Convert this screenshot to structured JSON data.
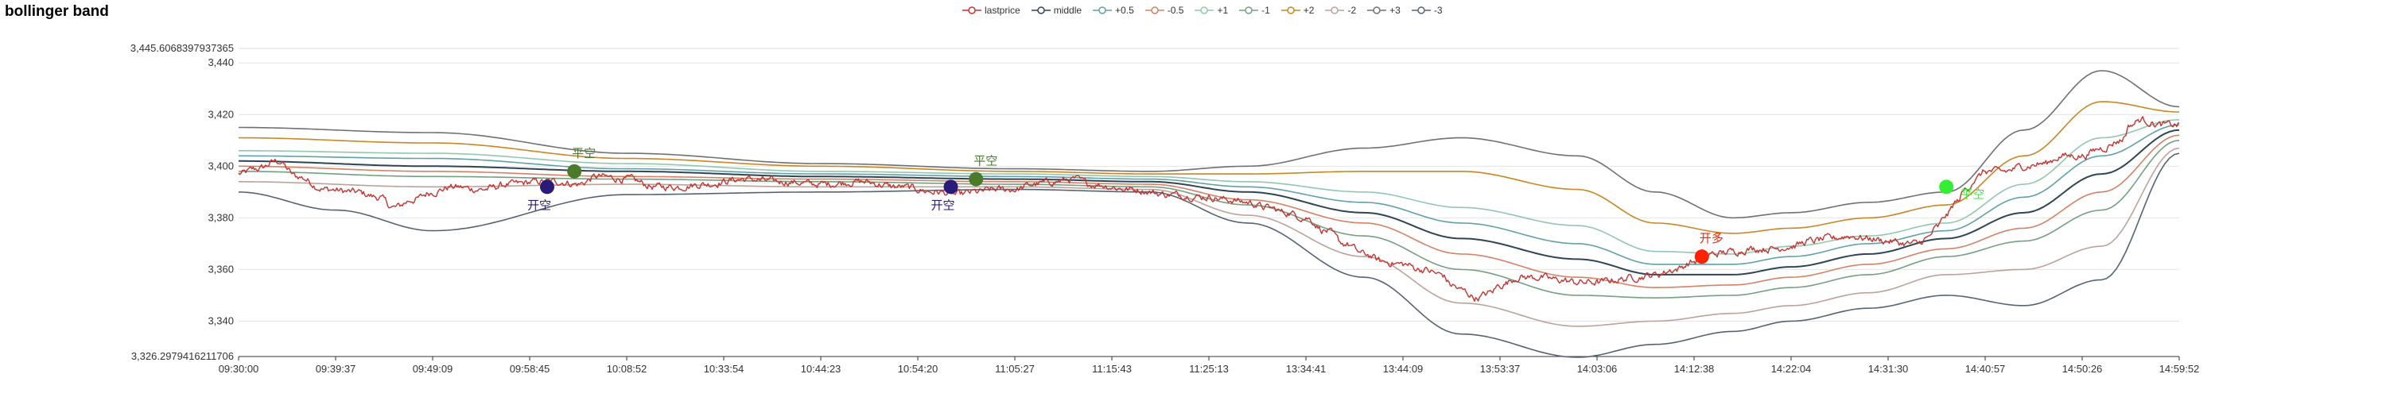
{
  "chart_data": {
    "type": "line",
    "title": "bollinger band",
    "xlabel": "",
    "ylabel": "",
    "ylim": [
      3326.2979416211706,
      3445.6068397937365
    ],
    "y_tick_labels": [
      "3,326.2979416211706",
      "3,340",
      "3,360",
      "3,380",
      "3,400",
      "3,420",
      "3,440",
      "3,445.6068397937365"
    ],
    "y_tick_values": [
      3326.2979416211706,
      3340,
      3360,
      3380,
      3400,
      3420,
      3440,
      3445.6068397937365
    ],
    "x_tick_labels": [
      "09:30:00",
      "09:39:37",
      "09:49:09",
      "09:58:45",
      "10:08:52",
      "10:33:54",
      "10:44:23",
      "10:54:20",
      "11:05:27",
      "11:15:43",
      "11:25:13",
      "13:34:41",
      "13:44:09",
      "13:53:37",
      "14:03:06",
      "14:12:38",
      "14:22:04",
      "14:31:30",
      "14:40:57",
      "14:50:26",
      "14:59:52"
    ],
    "legend_position": "top-center",
    "grid": true,
    "series": [
      {
        "name": "lastprice",
        "color": "#c23531"
      },
      {
        "name": "middle",
        "color": "#2f4554"
      },
      {
        "name": "+0.5",
        "color": "#61a0a8"
      },
      {
        "name": "-0.5",
        "color": "#d48265"
      },
      {
        "name": "+1",
        "color": "#91c7ae"
      },
      {
        "name": "-1",
        "color": "#749f83"
      },
      {
        "name": "+2",
        "color": "#ca8622"
      },
      {
        "name": "-2",
        "color": "#bda29a"
      },
      {
        "name": "+3",
        "color": "#6e7074"
      },
      {
        "name": "-3",
        "color": "#546570"
      }
    ],
    "price_keypoints": [
      [
        0,
        3397
      ],
      [
        0.01,
        3399
      ],
      [
        0.02,
        3402
      ],
      [
        0.03,
        3396
      ],
      [
        0.045,
        3391
      ],
      [
        0.06,
        3390
      ],
      [
        0.072,
        3388
      ],
      [
        0.08,
        3384
      ],
      [
        0.09,
        3387
      ],
      [
        0.1,
        3390
      ],
      [
        0.11,
        3392
      ],
      [
        0.125,
        3391
      ],
      [
        0.14,
        3393
      ],
      [
        0.155,
        3394
      ],
      [
        0.165,
        3394
      ],
      [
        0.175,
        3393
      ],
      [
        0.185,
        3396
      ],
      [
        0.2,
        3395
      ],
      [
        0.215,
        3392
      ],
      [
        0.225,
        3392
      ],
      [
        0.24,
        3393
      ],
      [
        0.26,
        3395
      ],
      [
        0.28,
        3394
      ],
      [
        0.3,
        3393
      ],
      [
        0.32,
        3394
      ],
      [
        0.34,
        3392
      ],
      [
        0.36,
        3390
      ],
      [
        0.37,
        3389
      ],
      [
        0.38,
        3390
      ],
      [
        0.39,
        3391
      ],
      [
        0.4,
        3391
      ],
      [
        0.41,
        3393
      ],
      [
        0.42,
        3394
      ],
      [
        0.43,
        3395
      ],
      [
        0.44,
        3393
      ],
      [
        0.46,
        3391
      ],
      [
        0.48,
        3389
      ],
      [
        0.5,
        3388
      ],
      [
        0.51,
        3387
      ],
      [
        0.52,
        3386
      ],
      [
        0.53,
        3384
      ],
      [
        0.54,
        3382
      ],
      [
        0.55,
        3380
      ],
      [
        0.56,
        3375
      ],
      [
        0.57,
        3370
      ],
      [
        0.58,
        3366
      ],
      [
        0.59,
        3363
      ],
      [
        0.6,
        3362
      ],
      [
        0.61,
        3360
      ],
      [
        0.62,
        3358
      ],
      [
        0.625,
        3354
      ],
      [
        0.63,
        3352
      ],
      [
        0.638,
        3349
      ],
      [
        0.645,
        3351
      ],
      [
        0.65,
        3354
      ],
      [
        0.66,
        3357
      ],
      [
        0.67,
        3357
      ],
      [
        0.68,
        3356
      ],
      [
        0.69,
        3355
      ],
      [
        0.7,
        3355
      ],
      [
        0.71,
        3356
      ],
      [
        0.72,
        3357
      ],
      [
        0.73,
        3358
      ],
      [
        0.74,
        3360
      ],
      [
        0.75,
        3363
      ],
      [
        0.755,
        3365
      ],
      [
        0.76,
        3366
      ],
      [
        0.77,
        3367
      ],
      [
        0.78,
        3368
      ],
      [
        0.79,
        3368
      ],
      [
        0.8,
        3369
      ],
      [
        0.81,
        3371
      ],
      [
        0.82,
        3372
      ],
      [
        0.83,
        3373
      ],
      [
        0.84,
        3372
      ],
      [
        0.85,
        3371
      ],
      [
        0.86,
        3370
      ],
      [
        0.865,
        3370
      ],
      [
        0.87,
        3372
      ],
      [
        0.875,
        3376
      ],
      [
        0.88,
        3381
      ],
      [
        0.885,
        3386
      ],
      [
        0.89,
        3391
      ],
      [
        0.895,
        3395
      ],
      [
        0.9,
        3398
      ],
      [
        0.91,
        3398
      ],
      [
        0.92,
        3400
      ],
      [
        0.93,
        3401
      ],
      [
        0.94,
        3404
      ],
      [
        0.95,
        3404
      ],
      [
        0.96,
        3407
      ],
      [
        0.97,
        3410
      ],
      [
        0.975,
        3416
      ],
      [
        0.98,
        3418
      ],
      [
        0.99,
        3416
      ],
      [
        1.0,
        3416
      ]
    ],
    "noise_amplitude": 1.4,
    "bands": [
      {
        "name": "+3",
        "keypoints": [
          [
            0,
            3415
          ],
          [
            0.1,
            3413
          ],
          [
            0.2,
            3405
          ],
          [
            0.3,
            3401
          ],
          [
            0.4,
            3399
          ],
          [
            0.47,
            3398
          ],
          [
            0.52,
            3400
          ],
          [
            0.58,
            3407
          ],
          [
            0.63,
            3411
          ],
          [
            0.69,
            3404
          ],
          [
            0.73,
            3390
          ],
          [
            0.77,
            3380
          ],
          [
            0.8,
            3382
          ],
          [
            0.84,
            3386
          ],
          [
            0.88,
            3390
          ],
          [
            0.92,
            3414
          ],
          [
            0.96,
            3437
          ],
          [
            1.0,
            3423
          ]
        ]
      },
      {
        "name": "+2",
        "keypoints": [
          [
            0,
            3411
          ],
          [
            0.1,
            3409
          ],
          [
            0.2,
            3403
          ],
          [
            0.3,
            3400
          ],
          [
            0.4,
            3398
          ],
          [
            0.47,
            3397
          ],
          [
            0.52,
            3397
          ],
          [
            0.58,
            3398
          ],
          [
            0.63,
            3398
          ],
          [
            0.69,
            3391
          ],
          [
            0.73,
            3378
          ],
          [
            0.77,
            3374
          ],
          [
            0.8,
            3376
          ],
          [
            0.84,
            3380
          ],
          [
            0.88,
            3385
          ],
          [
            0.92,
            3404
          ],
          [
            0.96,
            3425
          ],
          [
            1.0,
            3421
          ]
        ]
      },
      {
        "name": "+1",
        "keypoints": [
          [
            0,
            3406
          ],
          [
            0.1,
            3405
          ],
          [
            0.2,
            3401
          ],
          [
            0.3,
            3398
          ],
          [
            0.4,
            3397
          ],
          [
            0.47,
            3396
          ],
          [
            0.52,
            3394
          ],
          [
            0.58,
            3390
          ],
          [
            0.63,
            3384
          ],
          [
            0.69,
            3377
          ],
          [
            0.73,
            3367
          ],
          [
            0.77,
            3366
          ],
          [
            0.8,
            3369
          ],
          [
            0.84,
            3373
          ],
          [
            0.88,
            3378
          ],
          [
            0.92,
            3393
          ],
          [
            0.96,
            3411
          ],
          [
            1.0,
            3418
          ]
        ]
      },
      {
        "name": "+0.5",
        "keypoints": [
          [
            0,
            3404
          ],
          [
            0.1,
            3403
          ],
          [
            0.2,
            3399
          ],
          [
            0.3,
            3397
          ],
          [
            0.4,
            3396
          ],
          [
            0.47,
            3395
          ],
          [
            0.52,
            3392
          ],
          [
            0.58,
            3386
          ],
          [
            0.63,
            3378
          ],
          [
            0.69,
            3370
          ],
          [
            0.73,
            3362
          ],
          [
            0.77,
            3362
          ],
          [
            0.8,
            3365
          ],
          [
            0.84,
            3370
          ],
          [
            0.88,
            3375
          ],
          [
            0.92,
            3388
          ],
          [
            0.96,
            3404
          ],
          [
            1.0,
            3416
          ]
        ]
      },
      {
        "name": "middle",
        "keypoints": [
          [
            0,
            3402
          ],
          [
            0.1,
            3400
          ],
          [
            0.2,
            3398
          ],
          [
            0.3,
            3396
          ],
          [
            0.4,
            3395
          ],
          [
            0.47,
            3394
          ],
          [
            0.52,
            3390
          ],
          [
            0.58,
            3382
          ],
          [
            0.63,
            3372
          ],
          [
            0.69,
            3364
          ],
          [
            0.73,
            3358
          ],
          [
            0.77,
            3358
          ],
          [
            0.8,
            3361
          ],
          [
            0.84,
            3366
          ],
          [
            0.88,
            3372
          ],
          [
            0.92,
            3382
          ],
          [
            0.96,
            3397
          ],
          [
            1.0,
            3414
          ]
        ]
      },
      {
        "name": "-0.5",
        "keypoints": [
          [
            0,
            3400
          ],
          [
            0.1,
            3398
          ],
          [
            0.2,
            3396
          ],
          [
            0.3,
            3395
          ],
          [
            0.4,
            3394
          ],
          [
            0.47,
            3393
          ],
          [
            0.52,
            3387
          ],
          [
            0.58,
            3378
          ],
          [
            0.63,
            3366
          ],
          [
            0.69,
            3357
          ],
          [
            0.73,
            3353
          ],
          [
            0.77,
            3354
          ],
          [
            0.8,
            3357
          ],
          [
            0.84,
            3362
          ],
          [
            0.88,
            3368
          ],
          [
            0.92,
            3376
          ],
          [
            0.96,
            3390
          ],
          [
            1.0,
            3412
          ]
        ]
      },
      {
        "name": "-1",
        "keypoints": [
          [
            0,
            3398
          ],
          [
            0.1,
            3396
          ],
          [
            0.2,
            3395
          ],
          [
            0.3,
            3394
          ],
          [
            0.4,
            3393
          ],
          [
            0.47,
            3392
          ],
          [
            0.52,
            3385
          ],
          [
            0.58,
            3373
          ],
          [
            0.63,
            3360
          ],
          [
            0.69,
            3350
          ],
          [
            0.73,
            3349
          ],
          [
            0.77,
            3350
          ],
          [
            0.8,
            3353
          ],
          [
            0.84,
            3358
          ],
          [
            0.88,
            3365
          ],
          [
            0.92,
            3371
          ],
          [
            0.96,
            3383
          ],
          [
            1.0,
            3410
          ]
        ]
      },
      {
        "name": "-2",
        "keypoints": [
          [
            0,
            3394
          ],
          [
            0.1,
            3392
          ],
          [
            0.2,
            3393
          ],
          [
            0.3,
            3392
          ],
          [
            0.4,
            3392
          ],
          [
            0.47,
            3391
          ],
          [
            0.52,
            3381
          ],
          [
            0.58,
            3365
          ],
          [
            0.63,
            3347
          ],
          [
            0.69,
            3338
          ],
          [
            0.73,
            3340
          ],
          [
            0.77,
            3343
          ],
          [
            0.8,
            3346
          ],
          [
            0.84,
            3351
          ],
          [
            0.88,
            3358
          ],
          [
            0.92,
            3360
          ],
          [
            0.96,
            3369
          ],
          [
            1.0,
            3407
          ]
        ]
      },
      {
        "name": "-3",
        "keypoints": [
          [
            0,
            3390
          ],
          [
            0.05,
            3383
          ],
          [
            0.1,
            3375
          ],
          [
            0.2,
            3389
          ],
          [
            0.3,
            3390
          ],
          [
            0.4,
            3391
          ],
          [
            0.47,
            3390
          ],
          [
            0.52,
            3378
          ],
          [
            0.58,
            3357
          ],
          [
            0.63,
            3335
          ],
          [
            0.69,
            3326
          ],
          [
            0.73,
            3331
          ],
          [
            0.77,
            3336
          ],
          [
            0.8,
            3340
          ],
          [
            0.84,
            3345
          ],
          [
            0.88,
            3350
          ],
          [
            0.92,
            3346
          ],
          [
            0.96,
            3356
          ],
          [
            1.0,
            3405
          ]
        ]
      }
    ],
    "annotations": [
      {
        "label": "开空",
        "x": 0.159,
        "y": 3392,
        "color": "#2a1a7a",
        "label_pos": "below"
      },
      {
        "label": "平空",
        "x": 0.173,
        "y": 3398,
        "color": "#4a7a2a",
        "label_pos": "above"
      },
      {
        "label": "开空",
        "x": 0.367,
        "y": 3392,
        "color": "#2a1a7a",
        "label_pos": "below"
      },
      {
        "label": "平空",
        "x": 0.38,
        "y": 3395,
        "color": "#4a7a2a",
        "label_pos": "above"
      },
      {
        "label": "开多",
        "x": 0.754,
        "y": 3365,
        "color": "#ff2200",
        "label_pos": "above"
      },
      {
        "label": "平空",
        "x": 0.88,
        "y": 3392,
        "color": "#33ee33",
        "label_pos": "right"
      }
    ]
  }
}
